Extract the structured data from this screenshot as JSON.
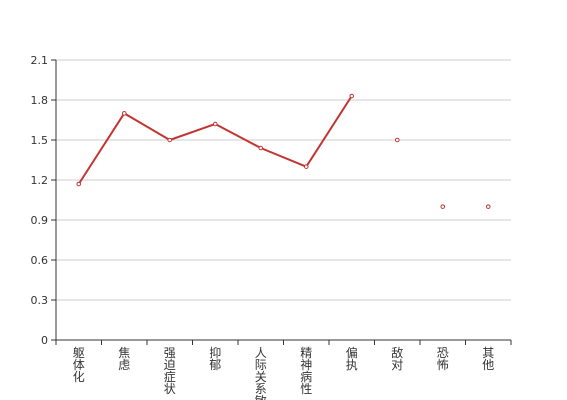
{
  "chart_data": {
    "type": "line",
    "categories": [
      "躯体化",
      "焦虑",
      "强迫症状",
      "抑郁",
      "人际关系敏感",
      "精神病性",
      "偏执",
      "敌对",
      "恐怖",
      "其他"
    ],
    "series": [
      {
        "values": [
          1.17,
          1.7,
          1.5,
          1.62,
          1.44,
          1.3,
          1.83,
          1.5,
          1.0,
          1.0
        ],
        "connected_through_index": 6
      }
    ],
    "ylim": [
      0,
      2.1
    ],
    "yticks": [
      0,
      0.3,
      0.6,
      0.9,
      1.2,
      1.5,
      1.8,
      2.1
    ],
    "ytick_labels": [
      "0",
      "0.3",
      "0.6",
      "0.9",
      "1.2",
      "1.5",
      "1.8",
      "2.1"
    ],
    "grid": true,
    "colors": {
      "line": "#c23531",
      "grid": "#cccccc",
      "axis": "#333333",
      "text": "#333333"
    }
  }
}
